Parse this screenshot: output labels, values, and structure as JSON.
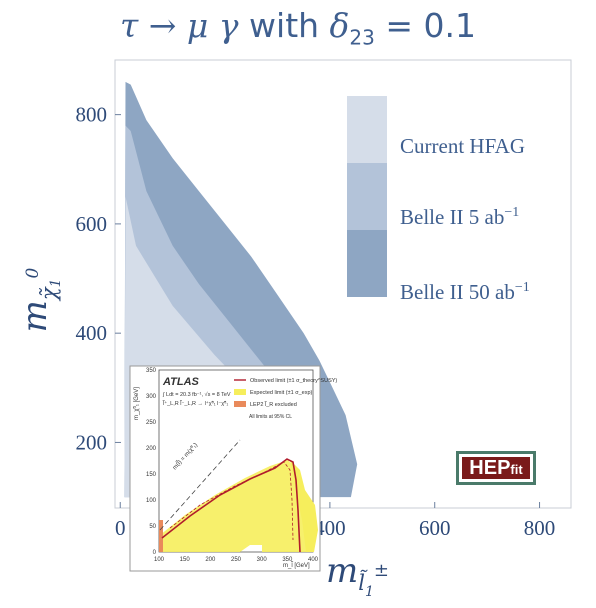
{
  "title": {
    "prefix": "τ → μ γ",
    "suffix": "with",
    "delta": "δ",
    "delta_sub": "23",
    "value": "= 0.1"
  },
  "axes": {
    "y_label": "m",
    "y_label_sub": "χ̃",
    "y_label_sub2": "1",
    "y_label_sup": "0",
    "x_label": "m",
    "x_label_sub": "l̃",
    "x_label_sub2": "1",
    "x_label_sup": "±"
  },
  "legend": {
    "items": [
      {
        "label": "Current HFAG",
        "sup": "",
        "color": "#d5dde9"
      },
      {
        "label": "Belle II 5 ab",
        "sup": "−1",
        "color": "#b3c3d9"
      },
      {
        "label": "Belle II 50 ab",
        "sup": "−1",
        "color": "#8ea6c3"
      }
    ]
  },
  "badge": {
    "main": "HEP",
    "sub": "fit"
  },
  "inset": {
    "brand": "ATLAS",
    "lumi": "∫ Ldt = 20.3 fb⁻¹, √s = 8 TeV",
    "process": "l̃⁺_L,R l̃⁻_L,R → l⁺χ̃⁰₁ l⁻χ̃⁰₁",
    "y_axis_label": "m_χ̃⁰₁ [GeV]",
    "x_axis_label": "m_l̃ [GeV]",
    "legend": [
      "Observed limit (±1 σ_theory^SUSY)",
      "Expected limit (±1 σ_exp)",
      "LEP2 l̃_R excluded"
    ],
    "note": "All limits at 95% CL",
    "diag_label": "m(l̃) = m(χ̃⁰₁)",
    "x_ticks": [
      "100",
      "150",
      "200",
      "250",
      "300",
      "350",
      "400"
    ],
    "y_ticks": [
      "0",
      "50",
      "100",
      "150",
      "200",
      "250",
      "300",
      "350"
    ]
  },
  "chart_data": {
    "type": "area",
    "title": "τ → μ γ with δ23 = 0.1",
    "xlabel": "m_l̃1±",
    "ylabel": "m_χ̃1^0",
    "x_ticks": [
      0,
      200,
      400,
      600,
      800
    ],
    "y_ticks": [
      200,
      400,
      600,
      800
    ],
    "xlim": [
      -10,
      860
    ],
    "ylim": [
      80,
      900
    ],
    "legend_position": "top-right",
    "series": [
      {
        "name": "Belle II 50 ab⁻¹",
        "x": [
          8,
          10,
          20,
          50,
          100,
          150,
          200,
          250,
          300,
          350,
          380,
          400,
          430,
          452,
          440,
          400
        ],
        "y": [
          100,
          860,
          855,
          790,
          720,
          660,
          600,
          540,
          470,
          400,
          350,
          310,
          250,
          160,
          100,
          100
        ]
      },
      {
        "name": "Belle II 5 ab⁻¹",
        "x": [
          8,
          10,
          20,
          50,
          100,
          150,
          200,
          250,
          300,
          330,
          360,
          378,
          372,
          330
        ],
        "y": [
          100,
          780,
          770,
          660,
          560,
          490,
          430,
          370,
          310,
          260,
          210,
          150,
          100,
          100
        ]
      },
      {
        "name": "Current HFAG",
        "x": [
          8,
          10,
          30,
          100,
          180,
          250,
          300,
          330,
          340,
          320,
          280
        ],
        "y": [
          100,
          650,
          560,
          450,
          360,
          290,
          230,
          180,
          140,
          100,
          100
        ]
      }
    ]
  }
}
